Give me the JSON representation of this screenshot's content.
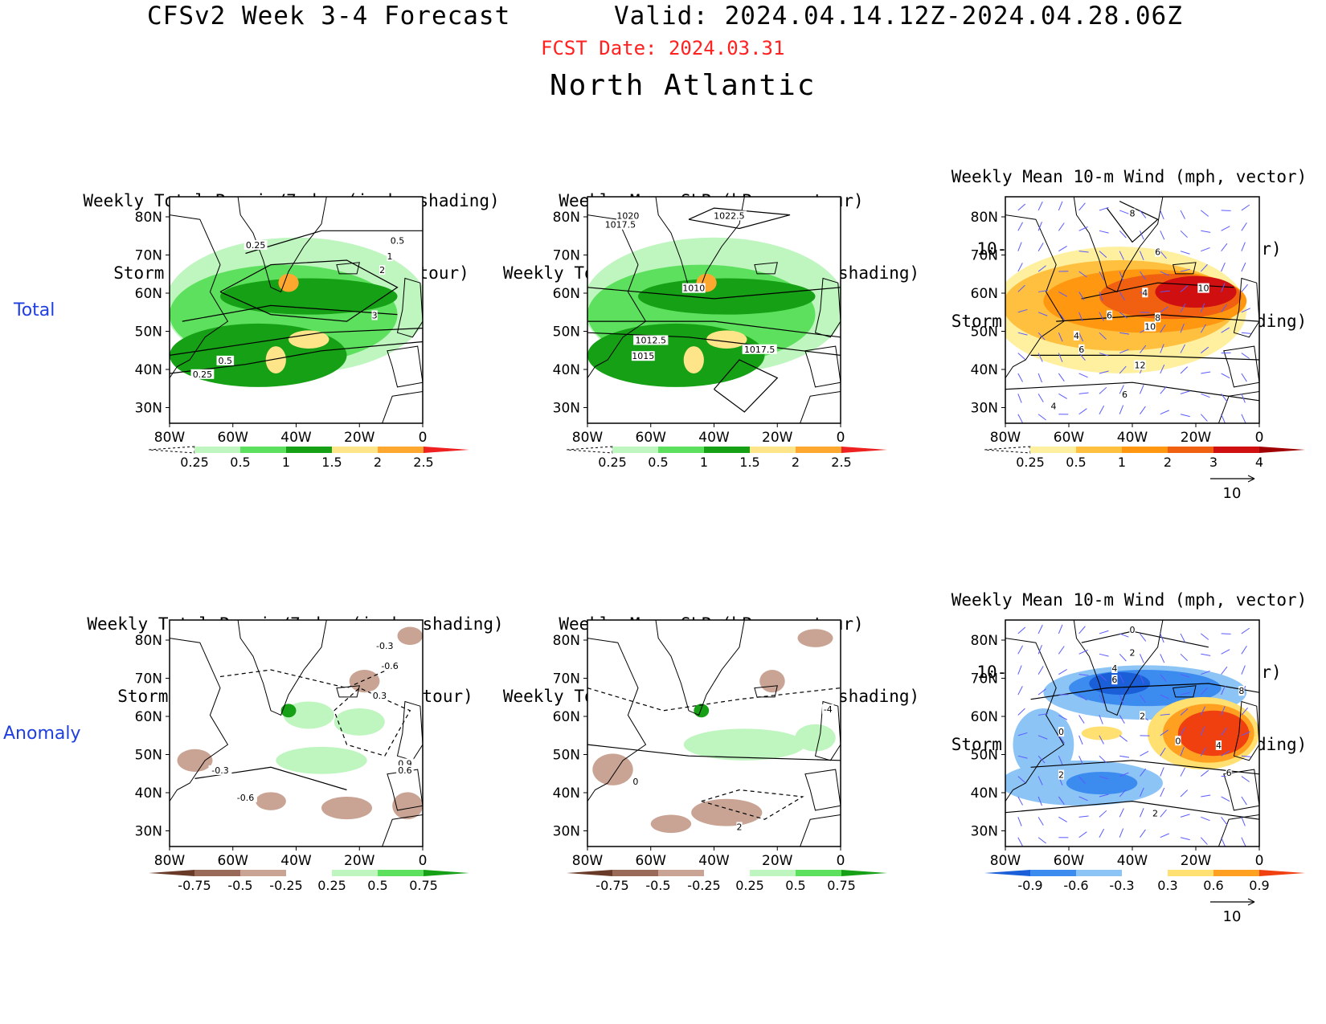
{
  "header": {
    "title": "CFSv2 Week 3-4 Forecast",
    "valid": "Valid: 2024.04.14.12Z-2024.04.28.06Z",
    "fcst_date": "FCST Date: 2024.03.31",
    "region": "North Atlantic"
  },
  "row_labels": {
    "total": "Total",
    "anomaly": "Anomaly"
  },
  "axes": {
    "lat_ticks": [
      "80N",
      "70N",
      "60N",
      "50N",
      "40N",
      "30N"
    ],
    "lon_ticks": [
      "80W",
      "60W",
      "40W",
      "20W",
      "0"
    ]
  },
  "panels": [
    {
      "id": "p1",
      "title": [
        "Weekly Total Precip/7-day (inch, shading)",
        "Storm Track Density/7-day (contour)"
      ],
      "contour_labels": [
        "0.25",
        "0.5",
        "1",
        "2",
        "3",
        "0.5",
        "0.25"
      ],
      "colorbar": {
        "ticks": [
          "0.25",
          "0.5",
          "1",
          "1.5",
          "2",
          "2.5"
        ],
        "colors": [
          "#ffffff",
          "#bff5bf",
          "#5de05d",
          "#16a016",
          "#ffe58a",
          "#ffa830",
          "#ee2020"
        ]
      }
    },
    {
      "id": "p2",
      "title": [
        "Weekly Mean SLP (hPa, contour)",
        "Weekly Total Precip/7-day (inch, shading)"
      ],
      "contour_labels": [
        "1020",
        "1017.5",
        "1022.5",
        "1010",
        "1012.5",
        "1015",
        "1017.5"
      ],
      "colorbar": {
        "ticks": [
          "0.25",
          "0.5",
          "1",
          "1.5",
          "2",
          "2.5"
        ],
        "colors": [
          "#ffffff",
          "#bff5bf",
          "#5de05d",
          "#16a016",
          "#ffe58a",
          "#ffa830",
          "#ee2020"
        ]
      }
    },
    {
      "id": "p3",
      "title": [
        "Weekly Mean 10-m Wind (mph, vector)",
        "10-m Wind Speed (mph, contour)",
        "Storm Track Density/7-day (shading)"
      ],
      "contour_labels": [
        "8",
        "6",
        "4",
        "10",
        "6",
        "8",
        "10",
        "4",
        "6",
        "12",
        "6",
        "4"
      ],
      "colorbar": {
        "ticks": [
          "0.25",
          "0.5",
          "1",
          "2",
          "3",
          "4"
        ],
        "colors": [
          "#ffffff",
          "#fff0a0",
          "#ffc040",
          "#ff9810",
          "#f06010",
          "#d01010",
          "#a00000"
        ]
      },
      "vector_ref": "10"
    },
    {
      "id": "p4",
      "title": [
        "Weekly Total Precip/7-day (inch, shading)",
        "Storm Track Density/7-day (contour)"
      ],
      "contour_labels": [
        "-0.3",
        "-0.6",
        "0.3",
        "-0.3",
        "-0.6",
        "0.9",
        "0.6"
      ],
      "colorbar": {
        "ticks": [
          "-0.75",
          "-0.5",
          "-0.25",
          "0.25",
          "0.5",
          "0.75"
        ],
        "colors": [
          "#6a3a28",
          "#9a6a58",
          "#c9a494",
          "#ffffff",
          "#bff5bf",
          "#5de05d",
          "#16a016"
        ]
      }
    },
    {
      "id": "p5",
      "title": [
        "Weekly Mean SLP (hPa, contour)",
        "Weekly Total Precip/7-day (inch, shading)"
      ],
      "contour_labels": [
        "-4",
        "0",
        "2"
      ],
      "colorbar": {
        "ticks": [
          "-0.75",
          "-0.5",
          "-0.25",
          "0.25",
          "0.5",
          "0.75"
        ],
        "colors": [
          "#6a3a28",
          "#9a6a58",
          "#c9a494",
          "#ffffff",
          "#bff5bf",
          "#5de05d",
          "#16a016"
        ]
      }
    },
    {
      "id": "p6",
      "title": [
        "Weekly Mean 10-m Wind (mph, vector)",
        "10-m Wind Speed (mph, contour)",
        "Storm Track Density/7-day (shading)"
      ],
      "contour_labels": [
        "0",
        "2",
        "4",
        "6",
        "8",
        "2",
        "0",
        "0",
        "4",
        "2",
        "6",
        "2"
      ],
      "colorbar": {
        "ticks": [
          "-0.9",
          "-0.6",
          "-0.3",
          "0.3",
          "0.6",
          "0.9"
        ],
        "colors": [
          "#1a5fd8",
          "#3c8cf0",
          "#8cc4f6",
          "#ffffff",
          "#ffe070",
          "#ffa020",
          "#f04010"
        ]
      },
      "vector_ref": "10"
    }
  ],
  "colors": {
    "fcst_date": "#ff2020",
    "row_label": "#1f3fe0",
    "vector": "#5a5aff"
  }
}
